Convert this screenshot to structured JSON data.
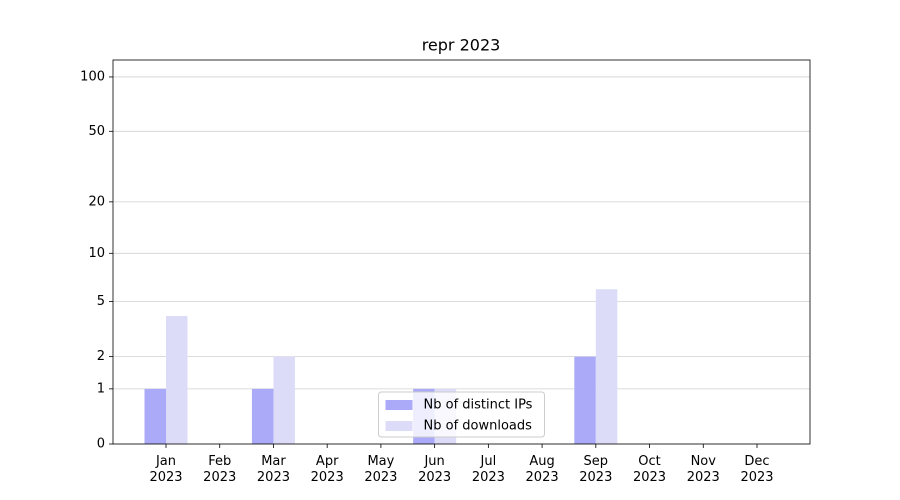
{
  "chart_data": {
    "type": "bar",
    "title": "repr 2023",
    "categories": [
      "Jan\n2023",
      "Feb\n2023",
      "Mar\n2023",
      "Apr\n2023",
      "May\n2023",
      "Jun\n2023",
      "Jul\n2023",
      "Aug\n2023",
      "Sep\n2023",
      "Oct\n2023",
      "Nov\n2023",
      "Dec\n2023"
    ],
    "series": [
      {
        "name": "Nb of distinct IPs",
        "color": "#aaaaf8",
        "values": [
          1,
          0,
          1,
          0,
          0,
          1,
          0,
          0,
          2,
          0,
          0,
          0
        ]
      },
      {
        "name": "Nb of downloads",
        "color": "#dcdcf8",
        "values": [
          4,
          0,
          2,
          0,
          0,
          1,
          0,
          0,
          6,
          0,
          0,
          0
        ]
      }
    ],
    "yscale": "log1p",
    "ylim": [
      0,
      124
    ],
    "yticks": [
      0,
      1,
      2,
      5,
      10,
      20,
      50,
      100
    ],
    "grid": true,
    "legend": "lower center"
  }
}
